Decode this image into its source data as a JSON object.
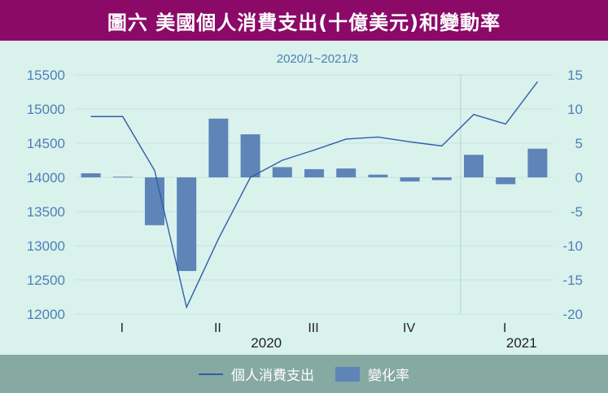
{
  "header": {
    "title": "圖六  美國個人消費支出(十億美元)和變動率"
  },
  "chart_data": {
    "type": "bar+line",
    "subtitle": "2020/1~2021/3",
    "left_axis": {
      "min": 12000,
      "max": 15500,
      "ticks": [
        "15500",
        "15000",
        "14500",
        "14000",
        "13500",
        "13000",
        "12500",
        "12000"
      ]
    },
    "right_axis": {
      "min": -20,
      "max": 15,
      "ticks": [
        "15",
        "10",
        "5",
        "0",
        "-5",
        "-10",
        "-15",
        "-20"
      ]
    },
    "months": 15,
    "quarter_labels": [
      "I",
      "II",
      "III",
      "IV",
      "I"
    ],
    "year_labels": [
      "2020",
      "2021"
    ],
    "series": [
      {
        "name": "個人消費支出",
        "type": "line",
        "axis": "left",
        "color": "#2f5ea8",
        "values": [
          14890,
          14890,
          14100,
          12100,
          13100,
          14000,
          14250,
          14400,
          14560,
          14590,
          14520,
          14460,
          14920,
          14780,
          15400
        ]
      },
      {
        "name": "變化率",
        "type": "bar",
        "axis": "right",
        "color": "#5f84b8",
        "values": [
          0.6,
          0.1,
          -7.0,
          -13.7,
          8.6,
          6.3,
          1.5,
          1.2,
          1.3,
          0.4,
          -0.6,
          -0.4,
          3.3,
          -1.0,
          4.2
        ]
      }
    ]
  },
  "legend": {
    "line_label": "個人消費支出",
    "bar_label": "變化率"
  }
}
